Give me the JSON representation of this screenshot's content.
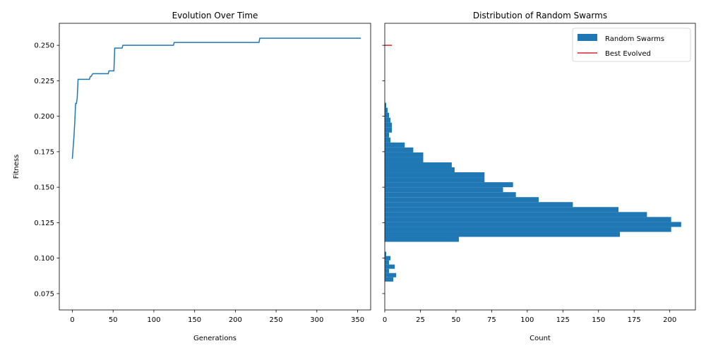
{
  "chart_data": [
    {
      "type": "line",
      "title": "Evolution Over Time",
      "xlabel": "Generations",
      "ylabel": "Fitness",
      "xlim": [
        -16,
        366
      ],
      "ylim": [
        0.0635,
        0.2655
      ],
      "xticks": [
        0,
        50,
        100,
        150,
        200,
        250,
        300,
        350
      ],
      "yticks": [
        0.075,
        0.1,
        0.125,
        0.15,
        0.175,
        0.2,
        0.225,
        0.25
      ],
      "color": "#1f77b4",
      "x": [
        0,
        1,
        2,
        3,
        4,
        5,
        6,
        7,
        21,
        22,
        23,
        25,
        44,
        45,
        46,
        51,
        52,
        61,
        62,
        124,
        125,
        229,
        230,
        354
      ],
      "y": [
        0.17,
        0.178,
        0.186,
        0.196,
        0.209,
        0.209,
        0.213,
        0.226,
        0.226,
        0.228,
        0.228,
        0.23,
        0.23,
        0.232,
        0.232,
        0.232,
        0.248,
        0.248,
        0.25,
        0.25,
        0.252,
        0.252,
        0.255,
        0.255
      ]
    },
    {
      "type": "bar",
      "orientation": "horizontal",
      "title": "Distribution of Random Swarms",
      "xlabel": "Count",
      "ylabel": "",
      "xlim": [
        0,
        218
      ],
      "ylim": [
        0.0635,
        0.2655
      ],
      "xticks": [
        0,
        25,
        50,
        75,
        100,
        125,
        150,
        175,
        200
      ],
      "yticks": [
        0.075,
        0.1,
        0.125,
        0.15,
        0.175,
        0.2,
        0.225,
        0.25
      ],
      "legend_position": "top-right",
      "series": [
        {
          "name": "Random Swarms",
          "kind": "histogram",
          "color": "#1f77b4",
          "bins": [
            {
              "y0": 0.06,
              "y1": 0.0635,
              "count": 1
            },
            {
              "y0": 0.0835,
              "y1": 0.0865,
              "count": 6
            },
            {
              "y0": 0.0865,
              "y1": 0.0895,
              "count": 8
            },
            {
              "y0": 0.0895,
              "y1": 0.0925,
              "count": 3
            },
            {
              "y0": 0.0925,
              "y1": 0.0955,
              "count": 7
            },
            {
              "y0": 0.0955,
              "y1": 0.0985,
              "count": 3
            },
            {
              "y0": 0.0985,
              "y1": 0.1015,
              "count": 4
            },
            {
              "y0": 0.1015,
              "y1": 0.1045,
              "count": 1
            },
            {
              "y0": 0.1115,
              "y1": 0.115,
              "count": 52
            },
            {
              "y0": 0.115,
              "y1": 0.1185,
              "count": 165
            },
            {
              "y0": 0.1185,
              "y1": 0.122,
              "count": 201
            },
            {
              "y0": 0.122,
              "y1": 0.1255,
              "count": 208
            },
            {
              "y0": 0.1255,
              "y1": 0.129,
              "count": 201
            },
            {
              "y0": 0.129,
              "y1": 0.1325,
              "count": 184
            },
            {
              "y0": 0.1325,
              "y1": 0.136,
              "count": 164
            },
            {
              "y0": 0.136,
              "y1": 0.1395,
              "count": 132
            },
            {
              "y0": 0.1395,
              "y1": 0.143,
              "count": 108
            },
            {
              "y0": 0.143,
              "y1": 0.1465,
              "count": 92
            },
            {
              "y0": 0.1465,
              "y1": 0.15,
              "count": 83
            },
            {
              "y0": 0.15,
              "y1": 0.1535,
              "count": 90
            },
            {
              "y0": 0.1535,
              "y1": 0.157,
              "count": 70
            },
            {
              "y0": 0.157,
              "y1": 0.1605,
              "count": 70
            },
            {
              "y0": 0.1605,
              "y1": 0.164,
              "count": 49
            },
            {
              "y0": 0.164,
              "y1": 0.1675,
              "count": 47
            },
            {
              "y0": 0.1675,
              "y1": 0.171,
              "count": 27
            },
            {
              "y0": 0.171,
              "y1": 0.1745,
              "count": 27
            },
            {
              "y0": 0.1745,
              "y1": 0.178,
              "count": 20
            },
            {
              "y0": 0.178,
              "y1": 0.1815,
              "count": 14
            },
            {
              "y0": 0.1815,
              "y1": 0.185,
              "count": 4
            },
            {
              "y0": 0.185,
              "y1": 0.1885,
              "count": 3
            },
            {
              "y0": 0.1885,
              "y1": 0.192,
              "count": 5
            },
            {
              "y0": 0.192,
              "y1": 0.1955,
              "count": 5
            },
            {
              "y0": 0.1955,
              "y1": 0.199,
              "count": 4
            },
            {
              "y0": 0.199,
              "y1": 0.2025,
              "count": 3
            },
            {
              "y0": 0.2025,
              "y1": 0.206,
              "count": 2
            },
            {
              "y0": 0.206,
              "y1": 0.2095,
              "count": 1
            }
          ]
        },
        {
          "name": "Best Evolved",
          "kind": "hline",
          "color": "#d62728",
          "y": 0.25,
          "x0": 0,
          "x1": 5
        }
      ]
    }
  ]
}
